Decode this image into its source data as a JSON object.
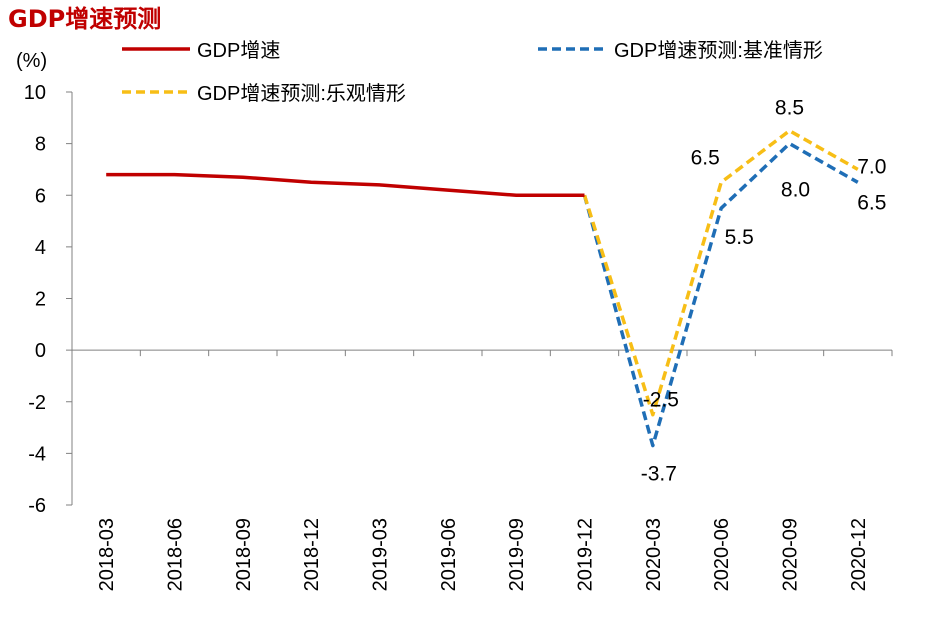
{
  "chart_data": {
    "type": "line",
    "title": "GDP增速预测",
    "ylabel": "(%)",
    "ylim": [
      -6,
      10
    ],
    "yticks": [
      10,
      8,
      6,
      4,
      2,
      0,
      -2,
      -4,
      -6
    ],
    "categories": [
      "2018-03",
      "2018-06",
      "2018-09",
      "2018-12",
      "2019-03",
      "2019-06",
      "2019-09",
      "2019-12",
      "2020-03",
      "2020-06",
      "2020-09",
      "2020-12"
    ],
    "grid": false,
    "legend_position": "top",
    "series": [
      {
        "name": "GDP增速",
        "style": "solid",
        "color": "#C00000",
        "values": [
          6.8,
          6.8,
          6.7,
          6.5,
          6.4,
          6.2,
          6.0,
          6.0,
          null,
          null,
          null,
          null
        ]
      },
      {
        "name": "GDP增速预测:基准情形",
        "style": "dashed",
        "color": "#1F6EB6",
        "values": [
          null,
          null,
          null,
          null,
          null,
          null,
          null,
          6.0,
          -3.7,
          5.5,
          8.0,
          6.5
        ]
      },
      {
        "name": "GDP增速预测:乐观情形",
        "style": "dashed",
        "color": "#F7BE16",
        "values": [
          null,
          null,
          null,
          null,
          null,
          null,
          null,
          6.0,
          -2.5,
          6.5,
          8.5,
          7.0
        ]
      }
    ],
    "annotations": [
      {
        "text": "-2.5",
        "category": "2020-03",
        "value": -2.5,
        "series": 2
      },
      {
        "text": "-3.7",
        "category": "2020-03",
        "value": -3.7,
        "series": 1
      },
      {
        "text": "6.5",
        "category": "2020-06",
        "value": 6.5,
        "series": 2
      },
      {
        "text": "5.5",
        "category": "2020-06",
        "value": 5.5,
        "series": 1
      },
      {
        "text": "8.5",
        "category": "2020-09",
        "value": 8.5,
        "series": 2
      },
      {
        "text": "8.0",
        "category": "2020-09",
        "value": 8.0,
        "series": 1
      },
      {
        "text": "7.0",
        "category": "2020-12",
        "value": 7.0,
        "series": 2
      },
      {
        "text": "6.5",
        "category": "2020-12",
        "value": 6.5,
        "series": 1
      }
    ]
  }
}
